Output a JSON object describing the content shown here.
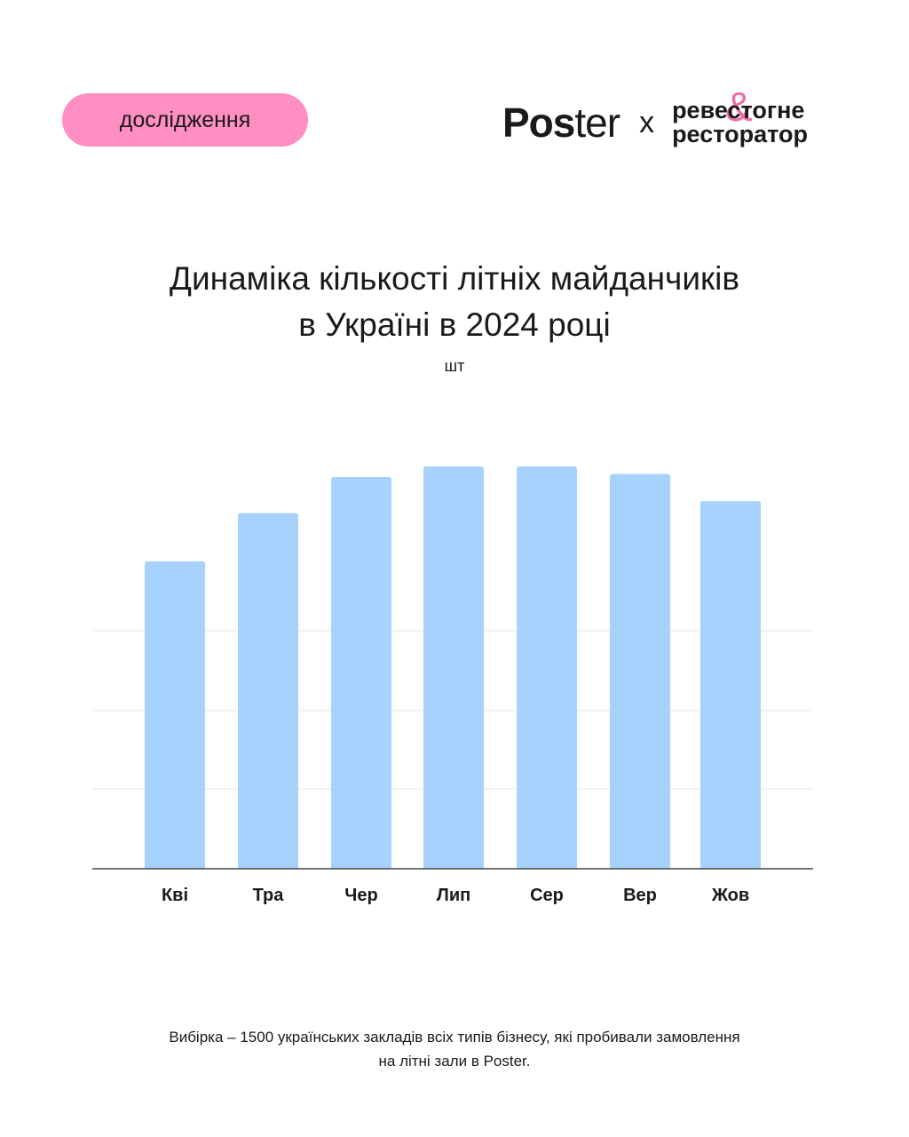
{
  "badge": {
    "label": "дослідження"
  },
  "brand": {
    "poster_bold": "Pos",
    "poster_light": "ter",
    "x": "x",
    "partner_line1": "ревестогне",
    "partner_line2": "ресторатор",
    "partner_amp": "&",
    "amp_color": "#f26aa8"
  },
  "colors": {
    "badge": "#ff8ec2",
    "bar": "#a6d2fd",
    "grid": "#e6e6e6",
    "axis": "#444444"
  },
  "chart_data": {
    "type": "bar",
    "title": [
      "Динаміка кількості літніх майданчиків",
      "в Україні в 2024 році"
    ],
    "ylabel": "шт",
    "xlabel": "",
    "categories": [
      "Кві",
      "Тра",
      "Чер",
      "Лип",
      "Сер",
      "Вер",
      "Жов"
    ],
    "values": [
      1020,
      1180,
      1300,
      1335,
      1335,
      1310,
      1220
    ],
    "ylim": [
      0,
      1350
    ],
    "grid_values": [
      265,
      525,
      790
    ],
    "grid": true
  },
  "footnote": {
    "line1": "Вибірка  – 1500 українських закладів всіх типів бізнесу, які пробивали замовлення",
    "line2": "на літні зали в Poster."
  }
}
